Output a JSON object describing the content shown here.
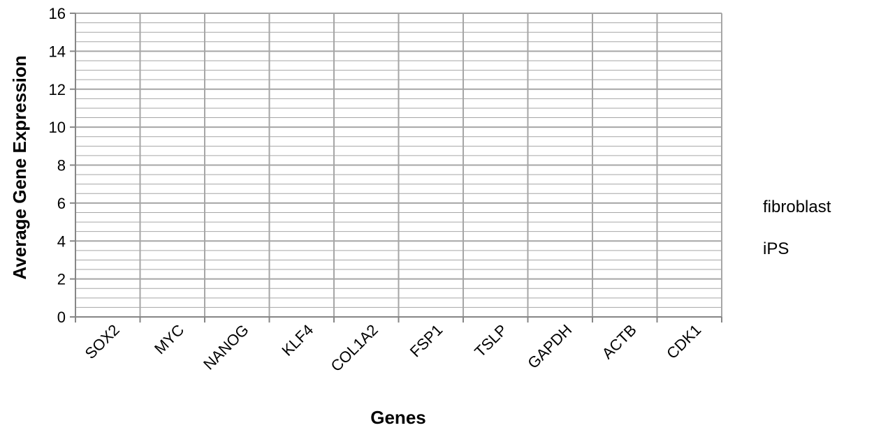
{
  "chart_data": {
    "type": "bar",
    "title": "",
    "xlabel": "Genes",
    "ylabel": "Average Gene Expression",
    "categories": [
      "SOX2",
      "MYC",
      "NANOG",
      "KLF4",
      "COL1A2",
      "FSP1",
      "TSLP",
      "GAPDH",
      "ACTB",
      "CDK1"
    ],
    "series": [
      {
        "name": "fibroblast",
        "values": [
          null,
          null,
          null,
          null,
          null,
          null,
          null,
          null,
          null,
          null
        ]
      },
      {
        "name": "iPS",
        "values": [
          null,
          null,
          null,
          null,
          null,
          null,
          null,
          null,
          null,
          null
        ]
      }
    ],
    "ylim": [
      0,
      16
    ],
    "y_major_ticks": [
      0,
      2,
      4,
      6,
      8,
      10,
      12,
      14,
      16
    ],
    "y_minor_step": 0.5,
    "grid": true,
    "legend_position": "right",
    "colors": {
      "grid": "#a6a6a6",
      "axis": "#868686",
      "text": "#000000"
    }
  }
}
